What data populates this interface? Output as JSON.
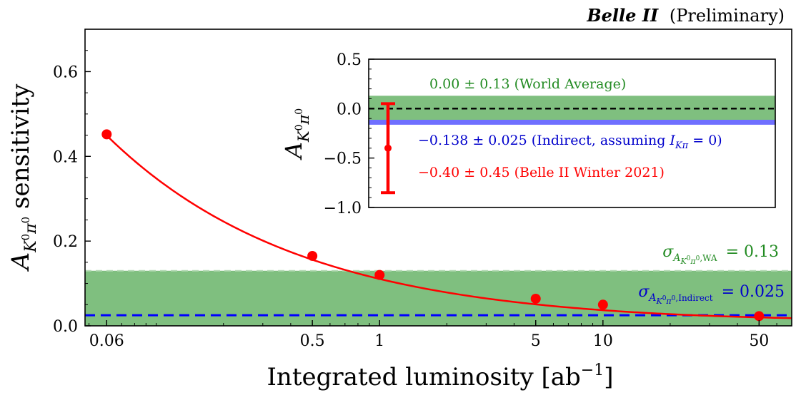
{
  "header": {
    "experiment": "Belle II",
    "status": "(Preliminary)"
  },
  "chart_data": [
    {
      "type": "line",
      "xscale": "log",
      "xlabel_main": "Integrated luminosity [ab",
      "xlabel_sup": "−1",
      "xlabel_close": "]",
      "ylabel_sym": "A",
      "ylabel_sub": "K",
      "ylabel_sub_sup": "0",
      "ylabel_sub2": "π",
      "ylabel_sub2_sup": "0",
      "ylabel_rest": " sensitivity",
      "xlim": [
        0.048,
        70
      ],
      "ylim": [
        0.0,
        0.7
      ],
      "x_ticks": [
        0.06,
        0.5,
        1,
        5,
        10,
        50
      ],
      "x_tick_labels": [
        "0.06",
        "0.5",
        "1",
        "5",
        "10",
        "50"
      ],
      "y_ticks": [
        0.0,
        0.2,
        0.4,
        0.6
      ],
      "y_tick_labels": [
        "0.0",
        "0.2",
        "0.4",
        "0.6"
      ],
      "series": [
        {
          "x": [
            0.06,
            0.5,
            1,
            5,
            10,
            50
          ],
          "y": [
            0.452,
            0.165,
            0.12,
            0.064,
            0.05,
            0.023
          ],
          "color": "#ff0000"
        }
      ],
      "fit_curve": {
        "model": "sqrt(a^2/L + b^2)",
        "a": 0.11,
        "b": 0.0125,
        "color": "#ff0000"
      },
      "bands": [
        {
          "low": 0.0,
          "high": 0.13,
          "color": "#7fbf7f",
          "edge": "#b2d9b2"
        }
      ],
      "hlines": [
        {
          "y": 0.025,
          "color": "#0000ff",
          "style": "dashed"
        }
      ],
      "annotations": {
        "wa": {
          "sigma": "σ",
          "sub_A": "A",
          "sub_K": "K",
          "sub_0a": "0",
          "sub_pi": "π",
          "sub_0b": "0",
          "sub_tag": ",WA",
          "value": "= 0.13",
          "color": "#228b22"
        },
        "indirect": {
          "sigma": "σ",
          "sub_A": "A",
          "sub_K": "K",
          "sub_0a": "0",
          "sub_pi": "π",
          "sub_0b": "0",
          "sub_tag": ",Indirect",
          "value": "= 0.025",
          "color": "#0000cc"
        }
      }
    },
    {
      "type": "errorbar",
      "inset": true,
      "ylabel_sym": "A",
      "ylabel_sub": "K",
      "ylabel_sub_sup": "0",
      "ylabel_sub2": "π",
      "ylabel_sub2_sup": "0",
      "ylim": [
        -1.0,
        0.5
      ],
      "y_ticks": [
        -1.0,
        -0.5,
        0.0,
        0.5
      ],
      "y_tick_labels": [
        "−1.0",
        "−0.5",
        "0.0",
        "0.5"
      ],
      "measurement": {
        "y": -0.4,
        "err": 0.45,
        "color": "#ff0000"
      },
      "bands": [
        {
          "center": 0.0,
          "half_width": 0.13,
          "color": "#7fbf7f"
        },
        {
          "center": -0.138,
          "half_width": 0.025,
          "color": "#6f6fff"
        }
      ],
      "zero_line": {
        "y": 0.0,
        "color": "#000000",
        "style": "dashed"
      },
      "labels": {
        "wa": {
          "text": "0.00 ± 0.13 (World Average)",
          "color": "#228b22"
        },
        "indirect": {
          "text": "−0.138 ± 0.025 (Indirect, assuming ",
          "sym": "I",
          "sub": "Kπ",
          "tail": " = 0)",
          "color": "#0000cc"
        },
        "belle": {
          "text": "−0.40 ± 0.45 (Belle II Winter 2021)",
          "color": "#ff0000"
        }
      }
    }
  ]
}
